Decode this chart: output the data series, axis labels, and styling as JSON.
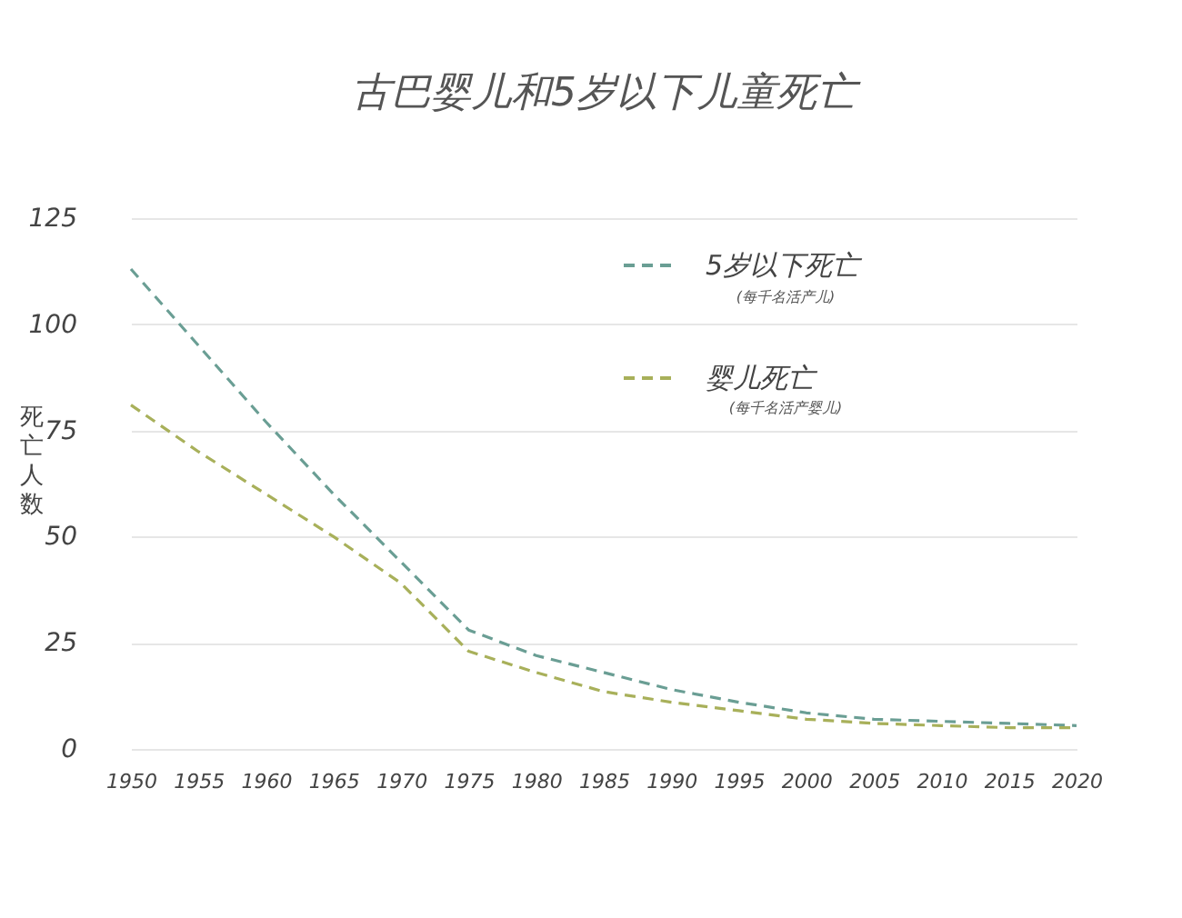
{
  "chart_data": {
    "type": "line",
    "title": "古巴婴儿和5岁以下儿童死亡",
    "ylabel": "死亡人数",
    "categories": [
      "1950",
      "1955",
      "1960",
      "1965",
      "1970",
      "1975",
      "1980",
      "1985",
      "1990",
      "1995",
      "2000",
      "2005",
      "2010",
      "2015",
      "2020"
    ],
    "series": [
      {
        "name": "5岁以下死亡",
        "color": "#6a9e94",
        "values": [
          113,
          95,
          77,
          60,
          44,
          28,
          22,
          18,
          14,
          11,
          8.5,
          7,
          6.5,
          6,
          5.5
        ]
      },
      {
        "name": "婴儿死亡",
        "color": "#a8b05a",
        "values": [
          81,
          70,
          60,
          50,
          39,
          23,
          18,
          13.5,
          11,
          9,
          7,
          6,
          5.5,
          5,
          5
        ]
      }
    ],
    "annotations": [
      "(每千名活产儿)",
      "(每千名活产婴儿)"
    ],
    "ylim": [
      0,
      125
    ],
    "yticks": [
      0,
      25,
      50,
      75,
      100,
      125
    ],
    "grid": "y",
    "legend": "top right",
    "line_style": "dashed",
    "marker": "none"
  }
}
